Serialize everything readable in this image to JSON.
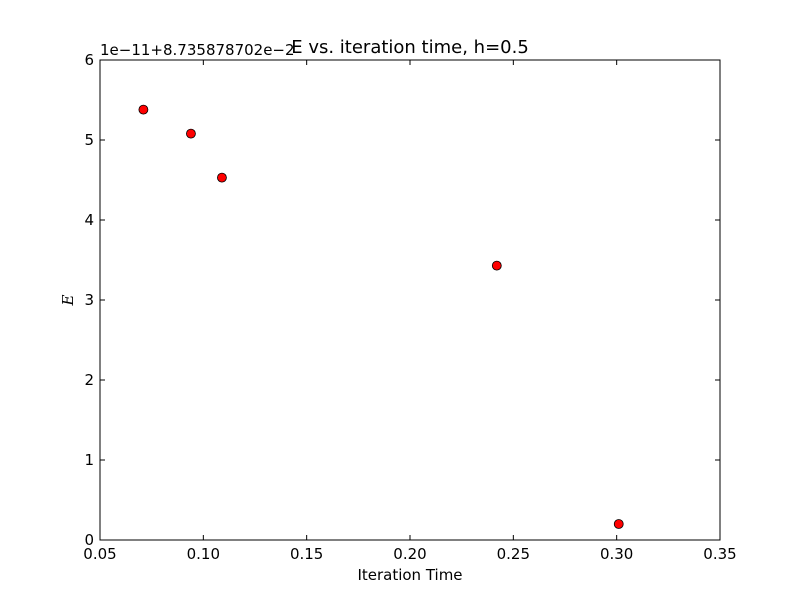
{
  "chart_data": {
    "type": "scatter",
    "title": "E vs. iteration time, h=0.5",
    "xlabel": "Iteration Time",
    "ylabel": "E",
    "offset_text": "1e−11+8.735878702e−2",
    "xlim": [
      0.05,
      0.35
    ],
    "ylim": [
      0,
      6
    ],
    "x_ticks": [
      "0.05",
      "0.10",
      "0.15",
      "0.20",
      "0.25",
      "0.30",
      "0.35"
    ],
    "y_ticks": [
      "0",
      "1",
      "2",
      "3",
      "4",
      "5",
      "6"
    ],
    "grid": false,
    "series": [
      {
        "marker_color": "#ff0000",
        "marker_edge": "#000000",
        "x": [
          0.071,
          0.094,
          0.109,
          0.242,
          0.301
        ],
        "y": [
          5.38,
          5.08,
          4.53,
          3.43,
          0.2
        ]
      }
    ]
  }
}
